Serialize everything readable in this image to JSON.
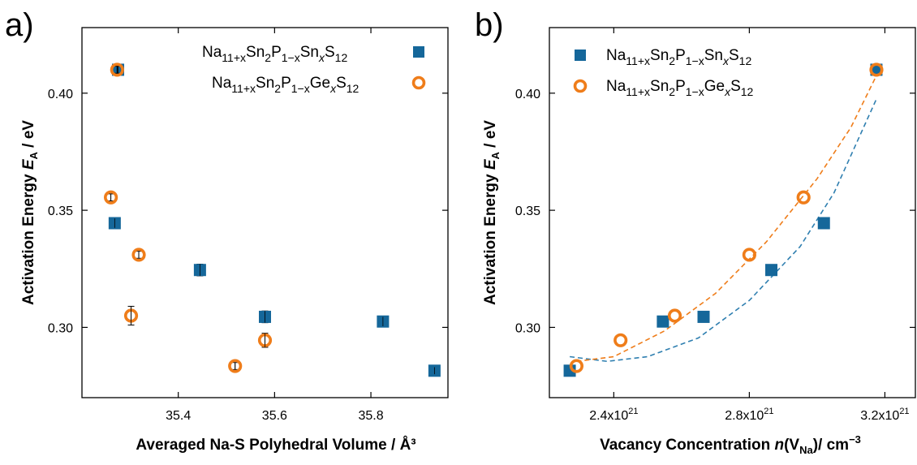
{
  "colors": {
    "sn": "#15679a",
    "ge": "#ef7d1a",
    "sn_fit": "#2f7fb0",
    "ge_fit": "#ef7d1a"
  },
  "panels": [
    {
      "panel_label": "a)"
    },
    {
      "panel_label": "b)"
    }
  ],
  "legend_entries": {
    "sn": {
      "pre": "Na",
      "s1": "11+x",
      "m1": "Sn",
      "s2": "2",
      "m2": "P",
      "s3": "1−x",
      "m3": "Sn",
      "s4": "x",
      "m4": "S",
      "s5": "12"
    },
    "ge": {
      "pre": "Na",
      "s1": "11+x",
      "m1": "Sn",
      "s2": "2",
      "m2": "P",
      "s3": "1−x",
      "m3": "Ge",
      "s4": "x",
      "m4": "S",
      "s5": "12"
    }
  },
  "y_title": {
    "main": "Activation Energy ",
    "sym": "E",
    "sub": "A",
    "unit": " / eV"
  },
  "x_title_a": "Averaged Na-S Polyhedral Volume / Å³",
  "x_title_b": {
    "main": "Vacancy Concentration ",
    "n": "n",
    "open": "(V",
    "sub": "Na",
    "close": ")/ cm",
    "sup": "−3"
  },
  "chart_data": [
    {
      "type": "scatter",
      "xlim": [
        35.2,
        35.96
      ],
      "ylim": [
        0.27,
        0.428
      ],
      "x_ticks": [
        35.4,
        35.6,
        35.8
      ],
      "x_tick_labels": [
        "35.4",
        "35.6",
        "35.8"
      ],
      "y_ticks": [
        0.3,
        0.35,
        0.4
      ],
      "y_tick_labels": [
        "0.30",
        "0.35",
        "0.40"
      ],
      "legend_position": "top-right",
      "series": [
        {
          "key": "sn",
          "marker": "filled-square",
          "points": [
            [
              35.275,
              0.41
            ],
            [
              35.268,
              0.3445
            ],
            [
              35.445,
              0.3245
            ],
            [
              35.58,
              0.3045
            ],
            [
              35.825,
              0.3025
            ],
            [
              35.932,
              0.2815
            ]
          ],
          "errors": [
            0.0015,
            0.002,
            0.0025,
            0.0025,
            0.002,
            0.0015
          ]
        },
        {
          "key": "ge",
          "marker": "open-circle",
          "points": [
            [
              35.273,
              0.41
            ],
            [
              35.26,
              0.3555
            ],
            [
              35.318,
              0.331
            ],
            [
              35.302,
              0.305
            ],
            [
              35.518,
              0.2835
            ],
            [
              35.58,
              0.2945
            ]
          ],
          "errors": [
            0.0015,
            0.0015,
            0.0015,
            0.004,
            0.0015,
            0.003
          ]
        }
      ]
    },
    {
      "type": "scatter",
      "xlim": [
        2.21e+21,
        3.29e+21
      ],
      "ylim": [
        0.27,
        0.428
      ],
      "x_ticks": [
        2.4e+21,
        2.8e+21,
        3.2e+21
      ],
      "x_tick_labels": [
        {
          "base": "2.4x10",
          "exp": "21"
        },
        {
          "base": "2.8x10",
          "exp": "21"
        },
        {
          "base": "3.2x10",
          "exp": "21"
        }
      ],
      "y_ticks": [
        0.3,
        0.35,
        0.4
      ],
      "y_tick_labels": [
        "0.30",
        "0.35",
        "0.40"
      ],
      "legend_position": "top-left",
      "series": [
        {
          "key": "sn",
          "marker": "filled-square",
          "points": [
            [
              2.27e+21,
              0.2815
            ],
            [
              2.545e+21,
              0.3025
            ],
            [
              2.665e+21,
              0.3045
            ],
            [
              2.865e+21,
              0.3245
            ],
            [
              3.02e+21,
              0.3445
            ],
            [
              3.175e+21,
              0.41
            ]
          ],
          "fit": {
            "style": "dashed",
            "x_range": [
              2.27e+21,
              3.175e+21
            ],
            "points": [
              [
                2.27e+21,
                0.2875
              ],
              [
                2.38e+21,
                0.2855
              ],
              [
                2.5e+21,
                0.2875
              ],
              [
                2.65e+21,
                0.2955
              ],
              [
                2.8e+21,
                0.3115
              ],
              [
                2.95e+21,
                0.3345
              ],
              [
                3.05e+21,
                0.3575
              ],
              [
                3.175e+21,
                0.3975
              ]
            ]
          }
        },
        {
          "key": "ge",
          "marker": "open-circle",
          "points": [
            [
              2.29e+21,
              0.2835
            ],
            [
              2.42e+21,
              0.2945
            ],
            [
              2.58e+21,
              0.305
            ],
            [
              2.8e+21,
              0.331
            ],
            [
              2.96e+21,
              0.3555
            ],
            [
              3.175e+21,
              0.41
            ]
          ],
          "fit": {
            "style": "dashed",
            "x_range": [
              2.29e+21,
              3.175e+21
            ],
            "points": [
              [
                2.29e+21,
                0.2855
              ],
              [
                2.4e+21,
                0.2875
              ],
              [
                2.55e+21,
                0.2985
              ],
              [
                2.7e+21,
                0.3145
              ],
              [
                2.85e+21,
                0.3365
              ],
              [
                3e+21,
                0.3635
              ],
              [
                3.1e+21,
                0.3855
              ],
              [
                3.175e+21,
                0.4075
              ]
            ]
          }
        }
      ]
    }
  ]
}
